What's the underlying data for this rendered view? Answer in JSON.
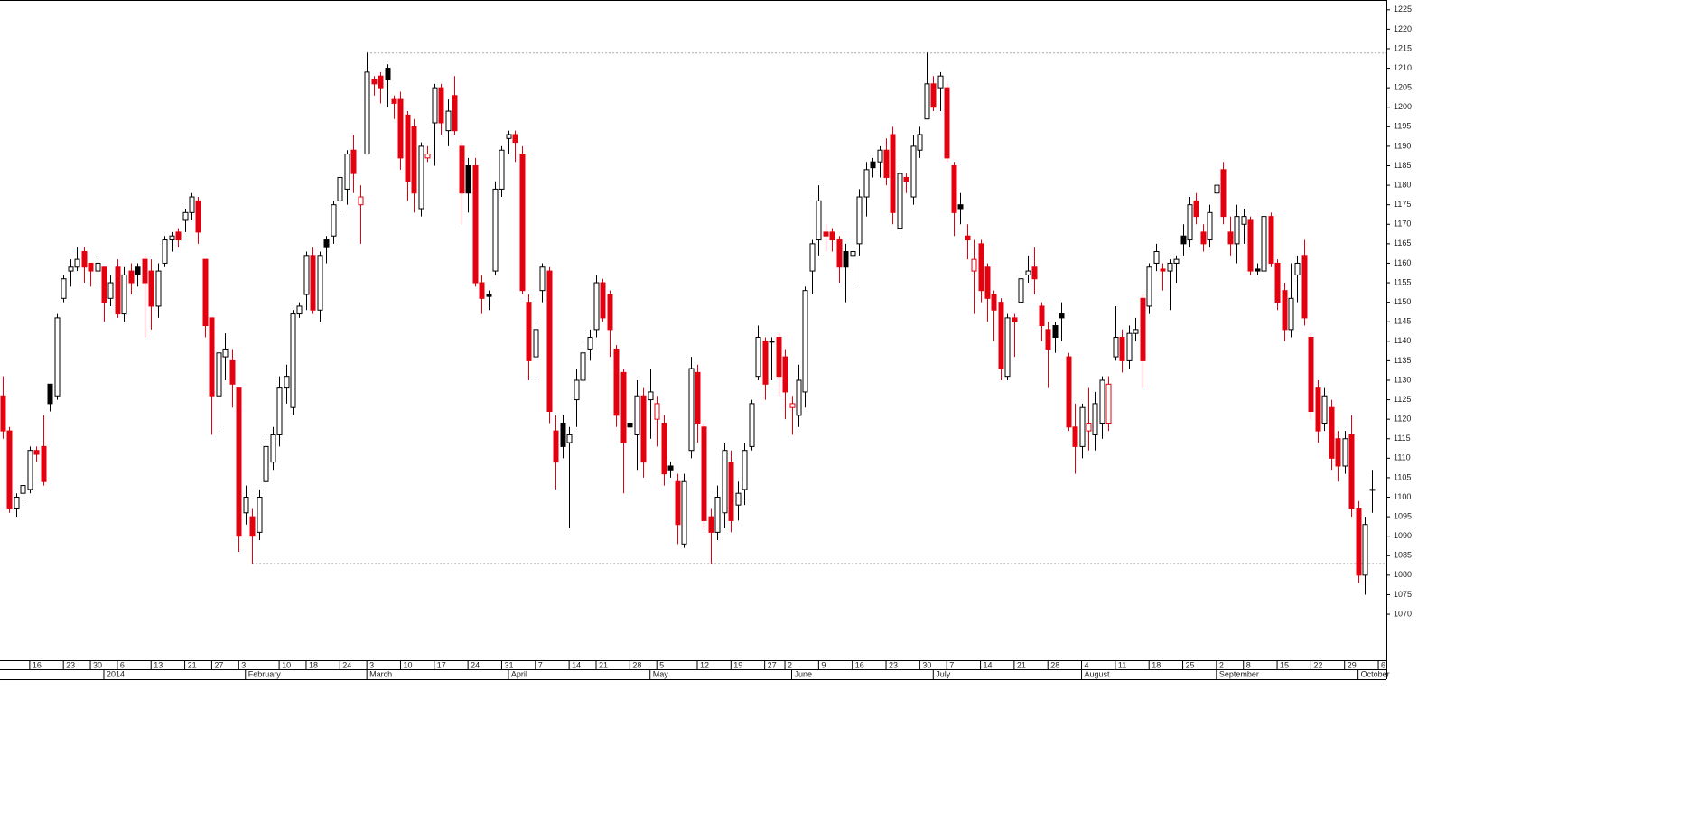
{
  "chart_data": {
    "type": "candlestick",
    "ohlc": [
      [
        1126,
        1131,
        1115,
        1117
      ],
      [
        1117,
        1118,
        1096,
        1097
      ],
      [
        1097,
        1101,
        1095,
        1100
      ],
      [
        1101,
        1104,
        1099,
        1103
      ],
      [
        1102,
        1113,
        1101,
        1112
      ],
      [
        1112,
        1113,
        1109,
        1111
      ],
      [
        1113,
        1121,
        1103,
        1104
      ],
      [
        1129,
        1129,
        1122,
        1124
      ],
      [
        1126,
        1147,
        1125,
        1146
      ],
      [
        1151,
        1157,
        1150,
        1156
      ],
      [
        1158,
        1161,
        1154,
        1159
      ],
      [
        1159,
        1164,
        1158,
        1161
      ],
      [
        1163,
        1164,
        1155,
        1159
      ],
      [
        1160,
        1160,
        1154,
        1158
      ],
      [
        1158,
        1162,
        1154,
        1160
      ],
      [
        1159,
        1159,
        1145,
        1150
      ],
      [
        1151,
        1157,
        1149,
        1155
      ],
      [
        1159,
        1161,
        1146,
        1147
      ],
      [
        1147,
        1159,
        1145,
        1157
      ],
      [
        1158,
        1160,
        1152,
        1155
      ],
      [
        1159,
        1160,
        1154,
        1157
      ],
      [
        1161,
        1162,
        1141,
        1155
      ],
      [
        1158,
        1161,
        1143,
        1149
      ],
      [
        1149,
        1160,
        1146,
        1158
      ],
      [
        1160,
        1167,
        1159,
        1166
      ],
      [
        1166,
        1168,
        1163,
        1167
      ],
      [
        1168,
        1169,
        1164,
        1166
      ],
      [
        1171,
        1174,
        1168,
        1173
      ],
      [
        1173,
        1178,
        1171,
        1177
      ],
      [
        1176,
        1177,
        1165,
        1168
      ],
      [
        1161,
        1161,
        1141,
        1144
      ],
      [
        1146,
        1146,
        1116,
        1126
      ],
      [
        1126,
        1138,
        1118,
        1137
      ],
      [
        1136,
        1142,
        1130,
        1138
      ],
      [
        1135,
        1138,
        1123,
        1129
      ],
      [
        1128,
        1128,
        1086,
        1090
      ],
      [
        1096,
        1103,
        1093,
        1100
      ],
      [
        1095,
        1097,
        1083,
        1090
      ],
      [
        1091,
        1102,
        1089,
        1100
      ],
      [
        1104,
        1115,
        1102,
        1113
      ],
      [
        1109,
        1118,
        1107,
        1116
      ],
      [
        1116,
        1131,
        1113,
        1128
      ],
      [
        1128,
        1134,
        1124,
        1131
      ],
      [
        1123,
        1148,
        1121,
        1147
      ],
      [
        1147,
        1150,
        1146,
        1149
      ],
      [
        1152,
        1163,
        1148,
        1162
      ],
      [
        1162,
        1164,
        1147,
        1148
      ],
      [
        1148,
        1163,
        1145,
        1162
      ],
      [
        1166,
        1167,
        1160,
        1164
      ],
      [
        1167,
        1176,
        1165,
        1175
      ],
      [
        1176,
        1183,
        1173,
        1182
      ],
      [
        1179,
        1189,
        1175,
        1188
      ],
      [
        1189,
        1193,
        1178,
        1183
      ],
      [
        1175,
        1180,
        1165,
        1177
      ],
      [
        1188,
        1214,
        1188,
        1209
      ],
      [
        1207,
        1208,
        1203,
        1206
      ],
      [
        1208,
        1209,
        1201,
        1205
      ],
      [
        1210,
        1211,
        1200,
        1207
      ],
      [
        1202,
        1203,
        1197,
        1201
      ],
      [
        1202,
        1204,
        1184,
        1187
      ],
      [
        1198,
        1199,
        1176,
        1181
      ],
      [
        1195,
        1197,
        1173,
        1178
      ],
      [
        1174,
        1191,
        1172,
        1190
      ],
      [
        1187,
        1190,
        1186,
        1188
      ],
      [
        1196,
        1206,
        1185,
        1205
      ],
      [
        1205,
        1206,
        1193,
        1196
      ],
      [
        1194,
        1202,
        1190,
        1199
      ],
      [
        1203,
        1208,
        1193,
        1194
      ],
      [
        1190,
        1191,
        1170,
        1178
      ],
      [
        1185,
        1187,
        1173,
        1178
      ],
      [
        1185,
        1187,
        1154,
        1155
      ],
      [
        1155,
        1157,
        1147,
        1151
      ],
      [
        1152,
        1153,
        1148,
        1151.5
      ],
      [
        1158,
        1181,
        1157,
        1179
      ],
      [
        1179,
        1190,
        1177,
        1189
      ],
      [
        1192,
        1194,
        1188,
        1193
      ],
      [
        1193,
        1194,
        1186,
        1191
      ],
      [
        1188,
        1190,
        1152,
        1153
      ],
      [
        1150,
        1152,
        1130,
        1135
      ],
      [
        1136,
        1145,
        1130,
        1143
      ],
      [
        1153,
        1160,
        1150,
        1159
      ],
      [
        1158,
        1159,
        1119,
        1122
      ],
      [
        1117,
        1121,
        1102,
        1109
      ],
      [
        1119,
        1121,
        1110,
        1113
      ],
      [
        1114,
        1118,
        1092,
        1116
      ],
      [
        1125,
        1133,
        1118,
        1130
      ],
      [
        1130,
        1139,
        1125,
        1137
      ],
      [
        1138,
        1143,
        1135,
        1141
      ],
      [
        1143,
        1157,
        1141,
        1155
      ],
      [
        1155,
        1156,
        1145,
        1146
      ],
      [
        1152,
        1153,
        1136,
        1143
      ],
      [
        1138,
        1139,
        1118,
        1121
      ],
      [
        1132,
        1133,
        1101,
        1114
      ],
      [
        1119,
        1120,
        1115,
        1118
      ],
      [
        1116,
        1130,
        1107,
        1126
      ],
      [
        1126,
        1128,
        1105,
        1109
      ],
      [
        1125,
        1133,
        1115,
        1127
      ],
      [
        1120,
        1126,
        1113,
        1124
      ],
      [
        1119,
        1121,
        1103,
        1106
      ],
      [
        1108,
        1109,
        1105,
        1107
      ],
      [
        1104,
        1106,
        1088,
        1093
      ],
      [
        1088,
        1106,
        1087,
        1104
      ],
      [
        1112,
        1136,
        1110,
        1133
      ],
      [
        1132,
        1134,
        1114,
        1119
      ],
      [
        1118,
        1119,
        1092,
        1094
      ],
      [
        1095,
        1097,
        1083,
        1091
      ],
      [
        1091,
        1103,
        1089,
        1100
      ],
      [
        1096,
        1114,
        1092,
        1112
      ],
      [
        1109,
        1112,
        1091,
        1094
      ],
      [
        1098,
        1104,
        1094,
        1101
      ],
      [
        1102,
        1114,
        1098,
        1112
      ],
      [
        1113,
        1125,
        1112,
        1124
      ],
      [
        1131,
        1144,
        1130,
        1141
      ],
      [
        1140,
        1141,
        1125,
        1129
      ],
      [
        1140,
        1141,
        1130,
        1140
      ],
      [
        1141,
        1142,
        1126,
        1131
      ],
      [
        1136,
        1138,
        1120,
        1127
      ],
      [
        1123,
        1126,
        1116,
        1124
      ],
      [
        1121,
        1134,
        1118,
        1130
      ],
      [
        1127,
        1154,
        1123,
        1153
      ],
      [
        1158,
        1166,
        1152,
        1165
      ],
      [
        1166,
        1180,
        1162,
        1176
      ],
      [
        1168,
        1170,
        1163,
        1167
      ],
      [
        1168,
        1169,
        1163,
        1166
      ],
      [
        1166,
        1167,
        1155,
        1159
      ],
      [
        1163,
        1165,
        1150,
        1159
      ],
      [
        1162,
        1165,
        1155,
        1163
      ],
      [
        1165,
        1179,
        1162,
        1177
      ],
      [
        1177,
        1186,
        1172,
        1184
      ],
      [
        1186,
        1187,
        1182,
        1184.5
      ],
      [
        1186,
        1190,
        1182,
        1189
      ],
      [
        1189,
        1192,
        1180,
        1182
      ],
      [
        1193,
        1195,
        1170,
        1173
      ],
      [
        1169,
        1185,
        1167,
        1183
      ],
      [
        1182,
        1183,
        1178,
        1181
      ],
      [
        1177,
        1193,
        1175,
        1190
      ],
      [
        1189,
        1195,
        1187,
        1193
      ],
      [
        1197,
        1214,
        1197,
        1206
      ],
      [
        1206,
        1208,
        1199,
        1200
      ],
      [
        1205,
        1209,
        1199,
        1208
      ],
      [
        1205,
        1206,
        1186,
        1187
      ],
      [
        1185,
        1186,
        1167,
        1173
      ],
      [
        1175,
        1178,
        1170,
        1174
      ],
      [
        1167,
        1170,
        1161,
        1166
      ],
      [
        1158,
        1166,
        1147,
        1161
      ],
      [
        1165,
        1166,
        1150,
        1153
      ],
      [
        1159,
        1160,
        1145,
        1151
      ],
      [
        1152,
        1153,
        1140,
        1148
      ],
      [
        1150,
        1151,
        1130,
        1133
      ],
      [
        1131,
        1147,
        1130,
        1146
      ],
      [
        1146,
        1147,
        1136,
        1145
      ],
      [
        1150,
        1157,
        1145,
        1156
      ],
      [
        1157,
        1162,
        1155,
        1158
      ],
      [
        1159,
        1164,
        1152,
        1156
      ],
      [
        1149,
        1150,
        1140,
        1144
      ],
      [
        1143,
        1145,
        1128,
        1138
      ],
      [
        1144,
        1145,
        1137,
        1141
      ],
      [
        1147,
        1150,
        1140,
        1146
      ],
      [
        1136,
        1137,
        1117,
        1118
      ],
      [
        1118,
        1124,
        1106,
        1113
      ],
      [
        1113,
        1124,
        1110,
        1123
      ],
      [
        1117,
        1128,
        1112,
        1119
      ],
      [
        1116,
        1127,
        1112,
        1124
      ],
      [
        1119,
        1131,
        1115,
        1130
      ],
      [
        1119,
        1131,
        1117,
        1129
      ],
      [
        1136,
        1149,
        1135,
        1141
      ],
      [
        1141,
        1143,
        1132,
        1135
      ],
      [
        1135,
        1144,
        1133,
        1142
      ],
      [
        1142,
        1146,
        1140,
        1143
      ],
      [
        1151,
        1152,
        1128,
        1135
      ],
      [
        1149,
        1160,
        1147,
        1159
      ],
      [
        1160,
        1165,
        1158,
        1163
      ],
      [
        1158.5,
        1160,
        1153,
        1158
      ],
      [
        1158,
        1161,
        1148,
        1160
      ],
      [
        1160,
        1162,
        1155,
        1161
      ],
      [
        1167,
        1170,
        1162,
        1165
      ],
      [
        1166,
        1177,
        1164,
        1175
      ],
      [
        1176,
        1178,
        1170,
        1172
      ],
      [
        1168,
        1170,
        1163,
        1165
      ],
      [
        1166,
        1175,
        1164,
        1173
      ],
      [
        1178,
        1183,
        1176,
        1180
      ],
      [
        1184,
        1186,
        1170,
        1172
      ],
      [
        1168,
        1172,
        1162,
        1165
      ],
      [
        1165,
        1175,
        1160,
        1172
      ],
      [
        1170,
        1174,
        1165,
        1172
      ],
      [
        1171,
        1172,
        1157,
        1158
      ],
      [
        1158.5,
        1160,
        1157,
        1158
      ],
      [
        1158,
        1173,
        1156,
        1172
      ],
      [
        1172,
        1173,
        1159,
        1160
      ],
      [
        1160,
        1161,
        1148,
        1150
      ],
      [
        1153,
        1155,
        1140,
        1143
      ],
      [
        1143,
        1160,
        1141,
        1151
      ],
      [
        1157,
        1162,
        1150,
        1160
      ],
      [
        1162,
        1166,
        1144,
        1146
      ],
      [
        1141,
        1142,
        1120,
        1122
      ],
      [
        1128,
        1130,
        1114,
        1117
      ],
      [
        1119,
        1128,
        1117,
        1126
      ],
      [
        1123,
        1125,
        1107,
        1110
      ],
      [
        1115,
        1117,
        1104,
        1108
      ],
      [
        1108,
        1117,
        1106,
        1115
      ],
      [
        1116,
        1121,
        1095,
        1097
      ],
      [
        1097,
        1099,
        1078,
        1080
      ],
      [
        1080,
        1095,
        1075,
        1093
      ],
      [
        1102,
        1107,
        1096,
        1102
      ]
    ],
    "up_color": "#000000",
    "down_color": "#e3000f",
    "xlim": [
      -0.4,
      205.2
    ],
    "xticks": [
      {
        "value": 4,
        "label": "16"
      },
      {
        "value": 9,
        "label": "23"
      },
      {
        "value": 13,
        "label": "30"
      },
      {
        "value": 17,
        "label": "6"
      },
      {
        "value": 22,
        "label": "13"
      },
      {
        "value": 27,
        "label": "21"
      },
      {
        "value": 31,
        "label": "27"
      },
      {
        "value": 35,
        "label": "3"
      },
      {
        "value": 41,
        "label": "10"
      },
      {
        "value": 45,
        "label": "18"
      },
      {
        "value": 50,
        "label": "24"
      },
      {
        "value": 54,
        "label": "3"
      },
      {
        "value": 59,
        "label": "10"
      },
      {
        "value": 64,
        "label": "17"
      },
      {
        "value": 69,
        "label": "24"
      },
      {
        "value": 74,
        "label": "31"
      },
      {
        "value": 79,
        "label": "7"
      },
      {
        "value": 84,
        "label": "14"
      },
      {
        "value": 88,
        "label": "21"
      },
      {
        "value": 93,
        "label": "28"
      },
      {
        "value": 97,
        "label": "5"
      },
      {
        "value": 103,
        "label": "12"
      },
      {
        "value": 108,
        "label": "19"
      },
      {
        "value": 113,
        "label": "27"
      },
      {
        "value": 116,
        "label": "2"
      },
      {
        "value": 121,
        "label": "9"
      },
      {
        "value": 126,
        "label": "16"
      },
      {
        "value": 131,
        "label": "23"
      },
      {
        "value": 136,
        "label": "30"
      },
      {
        "value": 140,
        "label": "7"
      },
      {
        "value": 145,
        "label": "14"
      },
      {
        "value": 150,
        "label": "21"
      },
      {
        "value": 155,
        "label": "28"
      },
      {
        "value": 160,
        "label": "4"
      },
      {
        "value": 165,
        "label": "11"
      },
      {
        "value": 170,
        "label": "18"
      },
      {
        "value": 175,
        "label": "25"
      },
      {
        "value": 180,
        "label": "2"
      },
      {
        "value": 184,
        "label": "8"
      },
      {
        "value": 189,
        "label": "15"
      },
      {
        "value": 194,
        "label": "22"
      },
      {
        "value": 199,
        "label": "29"
      },
      {
        "value": 204,
        "label": "6"
      }
    ],
    "month_labels": [
      {
        "value": 15,
        "label": "2014"
      },
      {
        "value": 36,
        "label": "February"
      },
      {
        "value": 54,
        "label": "March"
      },
      {
        "value": 75,
        "label": "April"
      },
      {
        "value": 96,
        "label": "May"
      },
      {
        "value": 117,
        "label": "June"
      },
      {
        "value": 138,
        "label": "July"
      },
      {
        "value": 160,
        "label": "August"
      },
      {
        "value": 180,
        "label": "September"
      },
      {
        "value": 201,
        "label": "October"
      }
    ],
    "ylim": [
      1058.2,
      1227.5
    ],
    "yticks": [
      1070,
      1075,
      1080,
      1085,
      1090,
      1095,
      1100,
      1105,
      1110,
      1115,
      1120,
      1125,
      1130,
      1135,
      1140,
      1145,
      1150,
      1155,
      1160,
      1165,
      1170,
      1175,
      1180,
      1185,
      1190,
      1195,
      1200,
      1205,
      1210,
      1215,
      1220,
      1225
    ],
    "reference_lines": [
      {
        "value": 1213.9,
        "start": 54
      },
      {
        "value": 1083,
        "start": 37
      }
    ],
    "grid": false
  }
}
